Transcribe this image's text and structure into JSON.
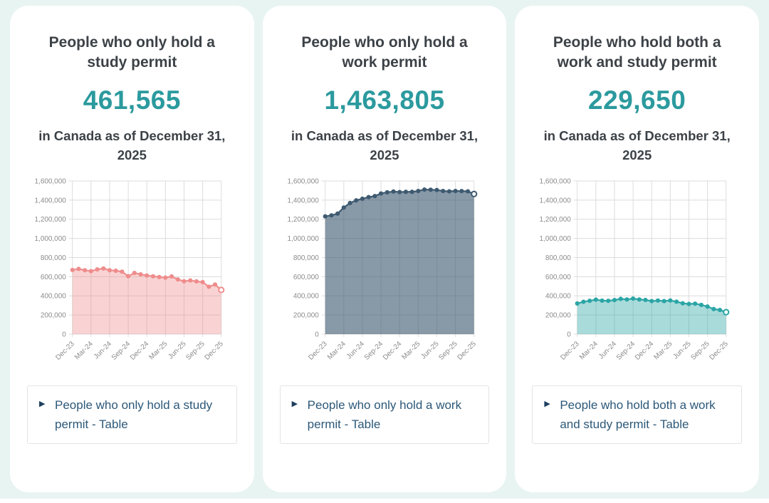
{
  "page": {
    "background": "#e8f4f2",
    "card_background": "#ffffff",
    "accent_teal": "#2b9a9e",
    "title_color": "#3c4247",
    "link_color": "#2c5878",
    "grid_color": "#dcdcdc",
    "axis_label_color": "#8b8b8b"
  },
  "cards": [
    {
      "title": "People who only hold a study permit",
      "value": "461,565",
      "subtitle": "in Canada as of December 31, 2025",
      "table_toggle_label": "People who only hold a study permit - Table",
      "toggle_icon": "▶"
    },
    {
      "title": "People who only hold a work permit",
      "value": "1,463,805",
      "subtitle": "in Canada as of December 31, 2025",
      "table_toggle_label": "People who only hold a work permit - Table",
      "toggle_icon": "▶"
    },
    {
      "title": "People who hold both a work and study permit",
      "value": "229,650",
      "subtitle": "in Canada as of December 31, 2025",
      "table_toggle_label": "People who hold both a work and study permit - Table",
      "toggle_icon": "▶"
    }
  ],
  "chart_data": [
    {
      "type": "area",
      "title": "People who only hold a study permit",
      "x": [
        "Dec-23",
        "Jan-24",
        "Feb-24",
        "Mar-24",
        "Apr-24",
        "May-24",
        "Jun-24",
        "Jul-24",
        "Aug-24",
        "Sep-24",
        "Oct-24",
        "Nov-24",
        "Dec-24",
        "Jan-25",
        "Feb-25",
        "Mar-25",
        "Apr-25",
        "May-25",
        "Jun-25",
        "Jul-25",
        "Aug-25",
        "Sep-25",
        "Oct-25",
        "Nov-25",
        "Dec-25"
      ],
      "values": [
        670000,
        681000,
        667000,
        658000,
        676000,
        686000,
        667000,
        662000,
        652000,
        605000,
        639000,
        624000,
        612000,
        604000,
        596000,
        590000,
        603000,
        571000,
        552000,
        561000,
        551000,
        543000,
        495000,
        518000,
        461565
      ],
      "x_tick_labels": [
        "Dec-23",
        "Mar-24",
        "Jun-24",
        "Sep-24",
        "Dec-24",
        "Mar-25",
        "Jun-25",
        "Sep-25",
        "Dec-25"
      ],
      "x_tick_every": 3,
      "y_tick_labels": [
        "0",
        "200,000",
        "400,000",
        "600,000",
        "800,000",
        "1,000,000",
        "1,200,000",
        "1,400,000",
        "1,600,000"
      ],
      "ylim": [
        0,
        1600000
      ],
      "y_tick_step": 200000,
      "grid": true,
      "legend": "none",
      "line_color": "#ef8c8c",
      "fill_color": "rgba(239,140,140,0.38)"
    },
    {
      "type": "area",
      "title": "People who only hold a work permit",
      "x": [
        "Dec-23",
        "Jan-24",
        "Feb-24",
        "Mar-24",
        "Apr-24",
        "May-24",
        "Jun-24",
        "Jul-24",
        "Aug-24",
        "Sep-24",
        "Oct-24",
        "Nov-24",
        "Dec-24",
        "Jan-25",
        "Feb-25",
        "Mar-25",
        "Apr-25",
        "May-25",
        "Jun-25",
        "Jul-25",
        "Aug-25",
        "Sep-25",
        "Oct-25",
        "Nov-25",
        "Dec-25"
      ],
      "values": [
        1230000,
        1240000,
        1259000,
        1322000,
        1369000,
        1397000,
        1414000,
        1431000,
        1442000,
        1469000,
        1481000,
        1489000,
        1484000,
        1486000,
        1486000,
        1495000,
        1510000,
        1508000,
        1505000,
        1495000,
        1491000,
        1495000,
        1494000,
        1491000,
        1463805
      ],
      "x_tick_labels": [
        "Dec-23",
        "Mar-24",
        "Jun-24",
        "Sep-24",
        "Dec-24",
        "Mar-25",
        "Jun-25",
        "Sep-25",
        "Dec-25"
      ],
      "x_tick_every": 3,
      "y_tick_labels": [
        "0",
        "200,000",
        "400,000",
        "600,000",
        "800,000",
        "1,000,000",
        "1,200,000",
        "1,400,000",
        "1,600,000"
      ],
      "ylim": [
        0,
        1600000
      ],
      "y_tick_step": 200000,
      "grid": true,
      "legend": "none",
      "line_color": "#3e5a70",
      "fill_color": "rgba(63,91,113,0.62)"
    },
    {
      "type": "area",
      "title": "People who hold both a work and study permit",
      "x": [
        "Dec-23",
        "Jan-24",
        "Feb-24",
        "Mar-24",
        "Apr-24",
        "May-24",
        "Jun-24",
        "Jul-24",
        "Aug-24",
        "Sep-24",
        "Oct-24",
        "Nov-24",
        "Dec-24",
        "Jan-25",
        "Feb-25",
        "Mar-25",
        "Apr-25",
        "May-25",
        "Jun-25",
        "Jul-25",
        "Aug-25",
        "Sep-25",
        "Oct-25",
        "Nov-25",
        "Dec-25"
      ],
      "values": [
        320000,
        338000,
        348000,
        360000,
        350000,
        348000,
        356000,
        368000,
        362000,
        371000,
        362000,
        357000,
        345000,
        351000,
        345000,
        352000,
        339000,
        322000,
        315000,
        318000,
        305000,
        288000,
        262000,
        252000,
        229650
      ],
      "x_tick_labels": [
        "Dec-23",
        "Mar-24",
        "Jun-24",
        "Sep-24",
        "Dec-24",
        "Mar-25",
        "Jun-25",
        "Sep-25",
        "Dec-25"
      ],
      "x_tick_every": 3,
      "y_tick_labels": [
        "0",
        "200,000",
        "400,000",
        "600,000",
        "800,000",
        "1,000,000",
        "1,200,000",
        "1,400,000",
        "1,600,000"
      ],
      "ylim": [
        0,
        1600000
      ],
      "y_tick_step": 200000,
      "grid": true,
      "legend": "none",
      "line_color": "#2ba5a5",
      "fill_color": "rgba(43,165,165,0.40)"
    }
  ]
}
